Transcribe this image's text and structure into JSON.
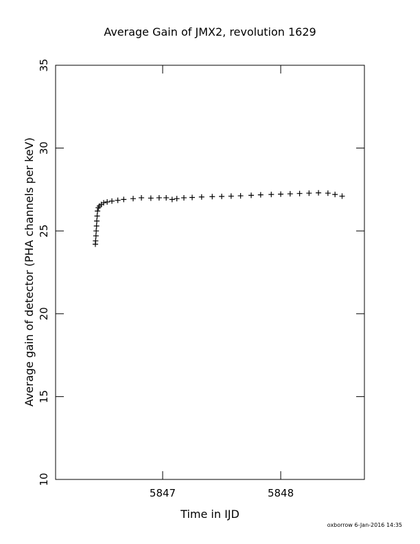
{
  "chart_data": {
    "type": "scatter",
    "title": "Average Gain of JMX2, revolution 1629",
    "x_label": "Time in IJD",
    "y_label": "Average gain of detector (PHA channels per keV)",
    "footer": "oxborrow  6-Jan-2016 14:35",
    "marker": "+",
    "color": "#000000",
    "xlim": [
      5846.093,
      5848.709
    ],
    "xticks": [
      5847,
      5848
    ],
    "ylim": [
      10,
      35
    ],
    "yticks": [
      10,
      15,
      20,
      25,
      30,
      35
    ],
    "x": [
      5846.43,
      5846.432,
      5846.435,
      5846.437,
      5846.44,
      5846.442,
      5846.445,
      5846.448,
      5846.455,
      5846.465,
      5846.48,
      5846.5,
      5846.53,
      5846.57,
      5846.62,
      5846.67,
      5846.75,
      5846.82,
      5846.9,
      5846.97,
      5847.03,
      5847.08,
      5847.12,
      5847.18,
      5847.25,
      5847.33,
      5847.42,
      5847.5,
      5847.58,
      5847.66,
      5847.75,
      5847.83,
      5847.92,
      5848.0,
      5848.08,
      5848.16,
      5848.24,
      5848.32,
      5848.4,
      5848.46,
      5848.52
    ],
    "values": [
      24.2,
      24.4,
      24.7,
      25.0,
      25.3,
      25.6,
      25.9,
      26.2,
      26.4,
      26.5,
      26.6,
      26.7,
      26.75,
      26.8,
      26.85,
      26.9,
      26.95,
      27.0,
      26.98,
      27.0,
      27.0,
      26.9,
      26.95,
      27.0,
      27.02,
      27.05,
      27.07,
      27.08,
      27.1,
      27.12,
      27.15,
      27.18,
      27.2,
      27.22,
      27.24,
      27.26,
      27.28,
      27.3,
      27.28,
      27.2,
      27.1
    ]
  }
}
